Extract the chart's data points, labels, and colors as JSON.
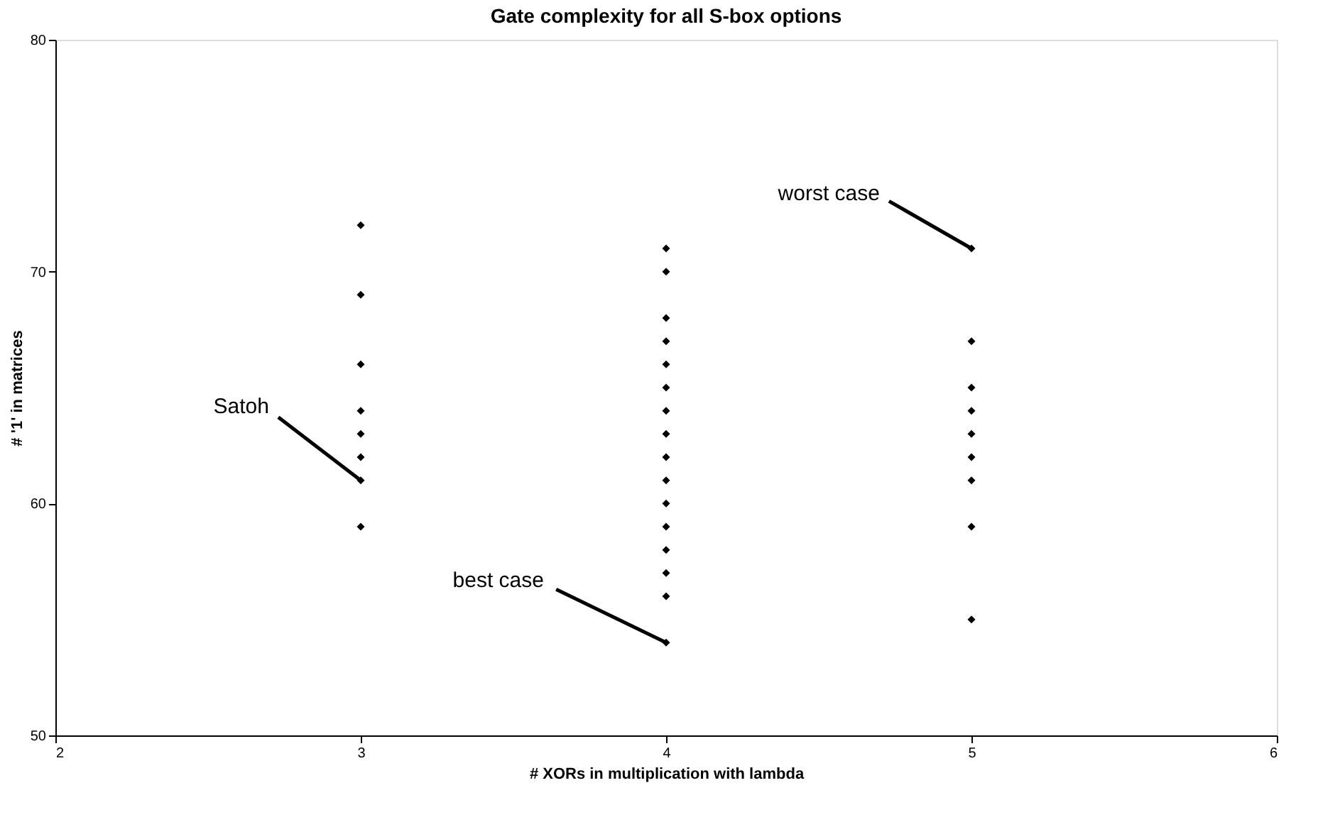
{
  "chart_data": {
    "type": "scatter",
    "title": "Gate complexity for all S-box options",
    "xlabel": "# XORs in multiplication with lambda",
    "ylabel": "# '1' in matrices",
    "x": [
      3,
      3,
      3,
      3,
      3,
      3,
      3,
      3,
      4,
      4,
      4,
      4,
      4,
      4,
      4,
      4,
      4,
      4,
      4,
      4,
      4,
      4,
      4,
      4,
      5,
      5,
      5,
      5,
      5,
      5,
      5,
      5,
      5
    ],
    "values": [
      72,
      69,
      66,
      64,
      63,
      62,
      61,
      59,
      71,
      70,
      68,
      67,
      66,
      65,
      64,
      63,
      62,
      61,
      60,
      59,
      58,
      57,
      56,
      54,
      71,
      67,
      65,
      64,
      63,
      62,
      61,
      59,
      55
    ],
    "color": "#000000",
    "marker": "diamond",
    "grid": false,
    "xlim": [
      2,
      6
    ],
    "xticks": [
      2,
      3,
      4,
      5,
      6
    ],
    "ylim": [
      50,
      80
    ],
    "yticks": [
      50,
      60,
      70,
      80
    ],
    "annotations": [
      {
        "text": "Satoh",
        "x": 3,
        "y": 61
      },
      {
        "text": "best case",
        "x": 4,
        "y": 54
      },
      {
        "text": "worst case",
        "x": 5,
        "y": 71
      }
    ]
  }
}
